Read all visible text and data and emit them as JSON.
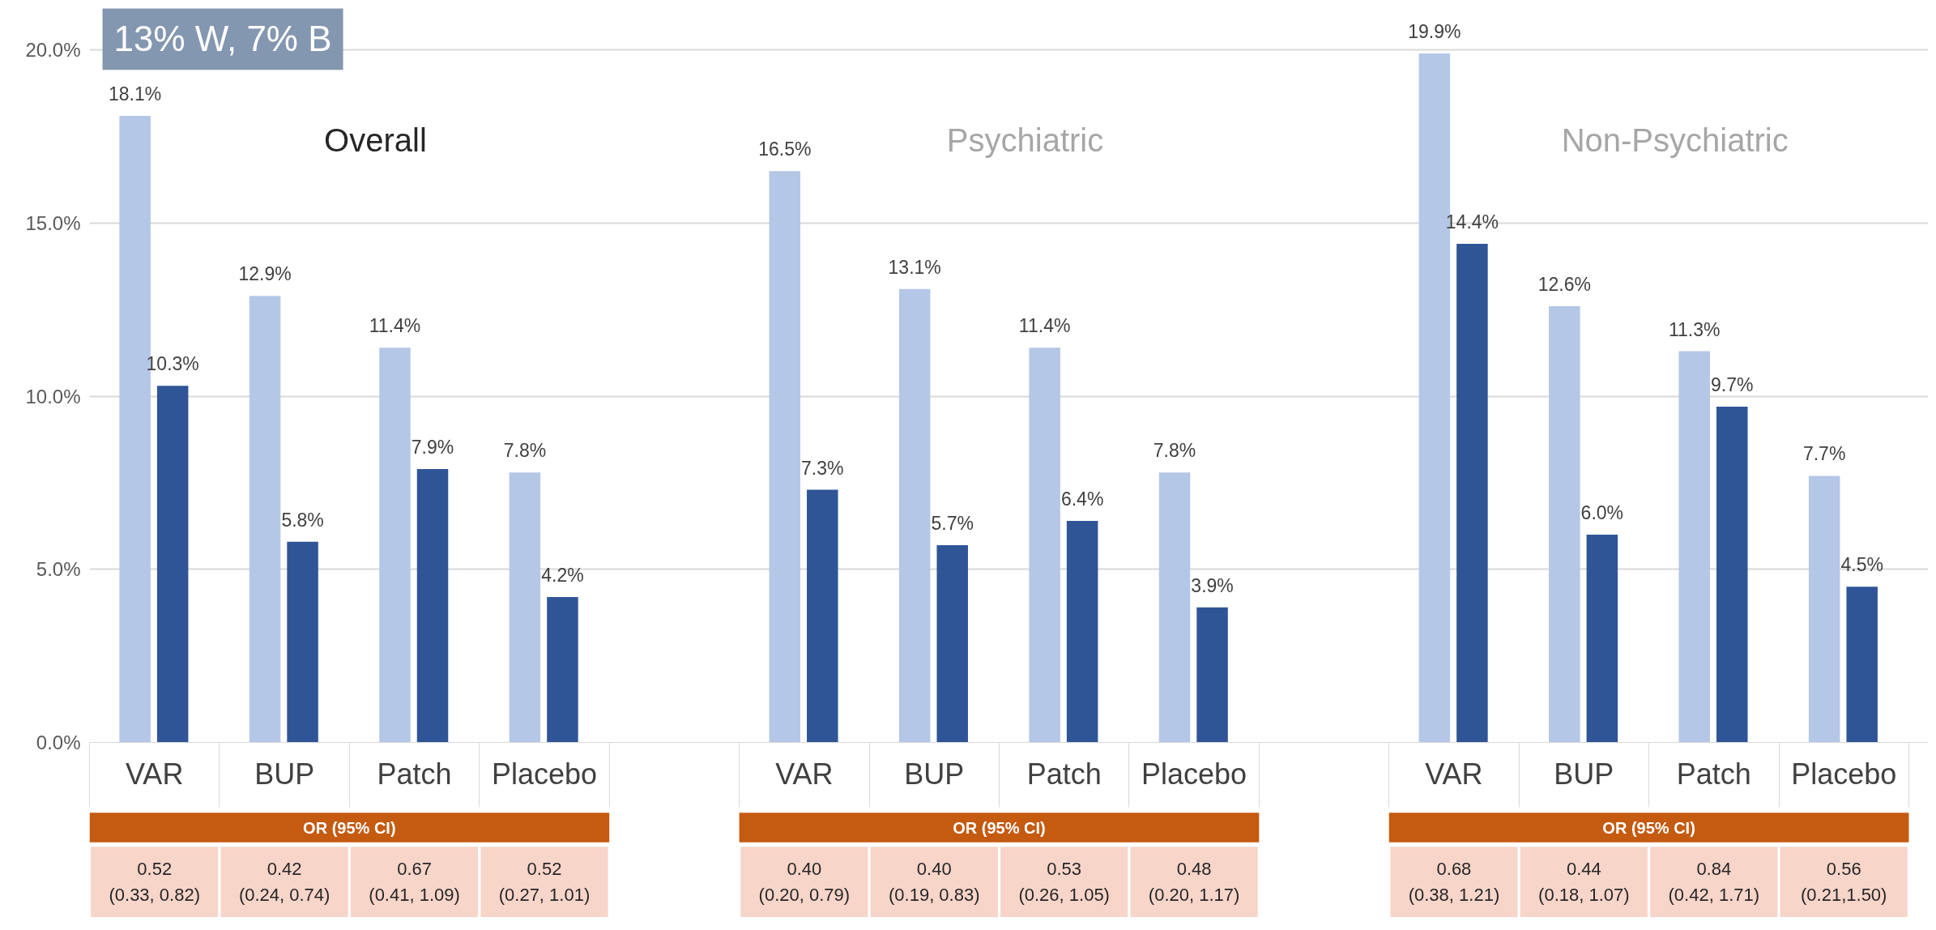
{
  "chart_data": {
    "type": "bar",
    "categories": [
      "VAR",
      "BUP",
      "Patch",
      "Placebo",
      null,
      "VAR",
      "BUP",
      "Patch",
      "Placebo",
      null,
      "VAR",
      "BUP",
      "Patch",
      "Placebo"
    ],
    "series": [
      {
        "color": "#b4c7e7",
        "values": [
          18.1,
          12.9,
          11.4,
          7.8,
          null,
          16.5,
          13.1,
          11.4,
          7.8,
          null,
          19.9,
          12.6,
          11.3,
          7.7
        ],
        "value_labels": [
          "18.1%",
          "12.9%",
          "11.4%",
          "7.8%",
          null,
          "16.5%",
          "13.1%",
          "11.4%",
          "7.8%",
          null,
          "19.9%",
          "12.6%",
          "11.3%",
          "7.7%"
        ]
      },
      {
        "color": "#2f5597",
        "values": [
          10.3,
          5.8,
          7.9,
          4.2,
          null,
          7.3,
          5.7,
          6.4,
          3.9,
          null,
          14.4,
          6.0,
          9.7,
          4.5
        ],
        "value_labels": [
          "10.3%",
          "5.8%",
          "7.9%",
          "4.2%",
          null,
          "7.3%",
          "5.7%",
          "6.4%",
          "3.9%",
          null,
          "14.4%",
          "6.0%",
          "9.7%",
          "4.5%"
        ]
      }
    ],
    "ylim": [
      0,
      21.2
    ],
    "yticks": [
      {
        "value": 0,
        "label": "0.0%"
      },
      {
        "value": 5,
        "label": "5.0%"
      },
      {
        "value": 10,
        "label": "10.0%"
      },
      {
        "value": 15,
        "label": "15.0%"
      },
      {
        "value": 20,
        "label": "20.0%"
      }
    ],
    "grid": "y",
    "annotations": [
      "13% W, 7% B",
      "Overall",
      "Psychiatric",
      "Non-Psychiatric",
      "OR (95% CI)",
      "0.52\n(0.33, 0.82)",
      "0.42\n(0.24, 0.74)",
      "0.67\n(0.41, 1.09)",
      "0.52\n(0.27, 1.01)",
      "OR (95% CI)",
      "0.40\n(0.20, 0.79)",
      "0.40\n(0.19, 0.83)",
      "0.53\n(0.26, 1.05)",
      "0.48\n(0.20, 1.17)",
      "OR (95% CI)",
      "0.68\n(0.38, 1.21)",
      "0.44\n(0.18, 1.07)",
      "0.84\n(0.42, 1.71)",
      "0.56\n(0.21,1.50)"
    ]
  }
}
